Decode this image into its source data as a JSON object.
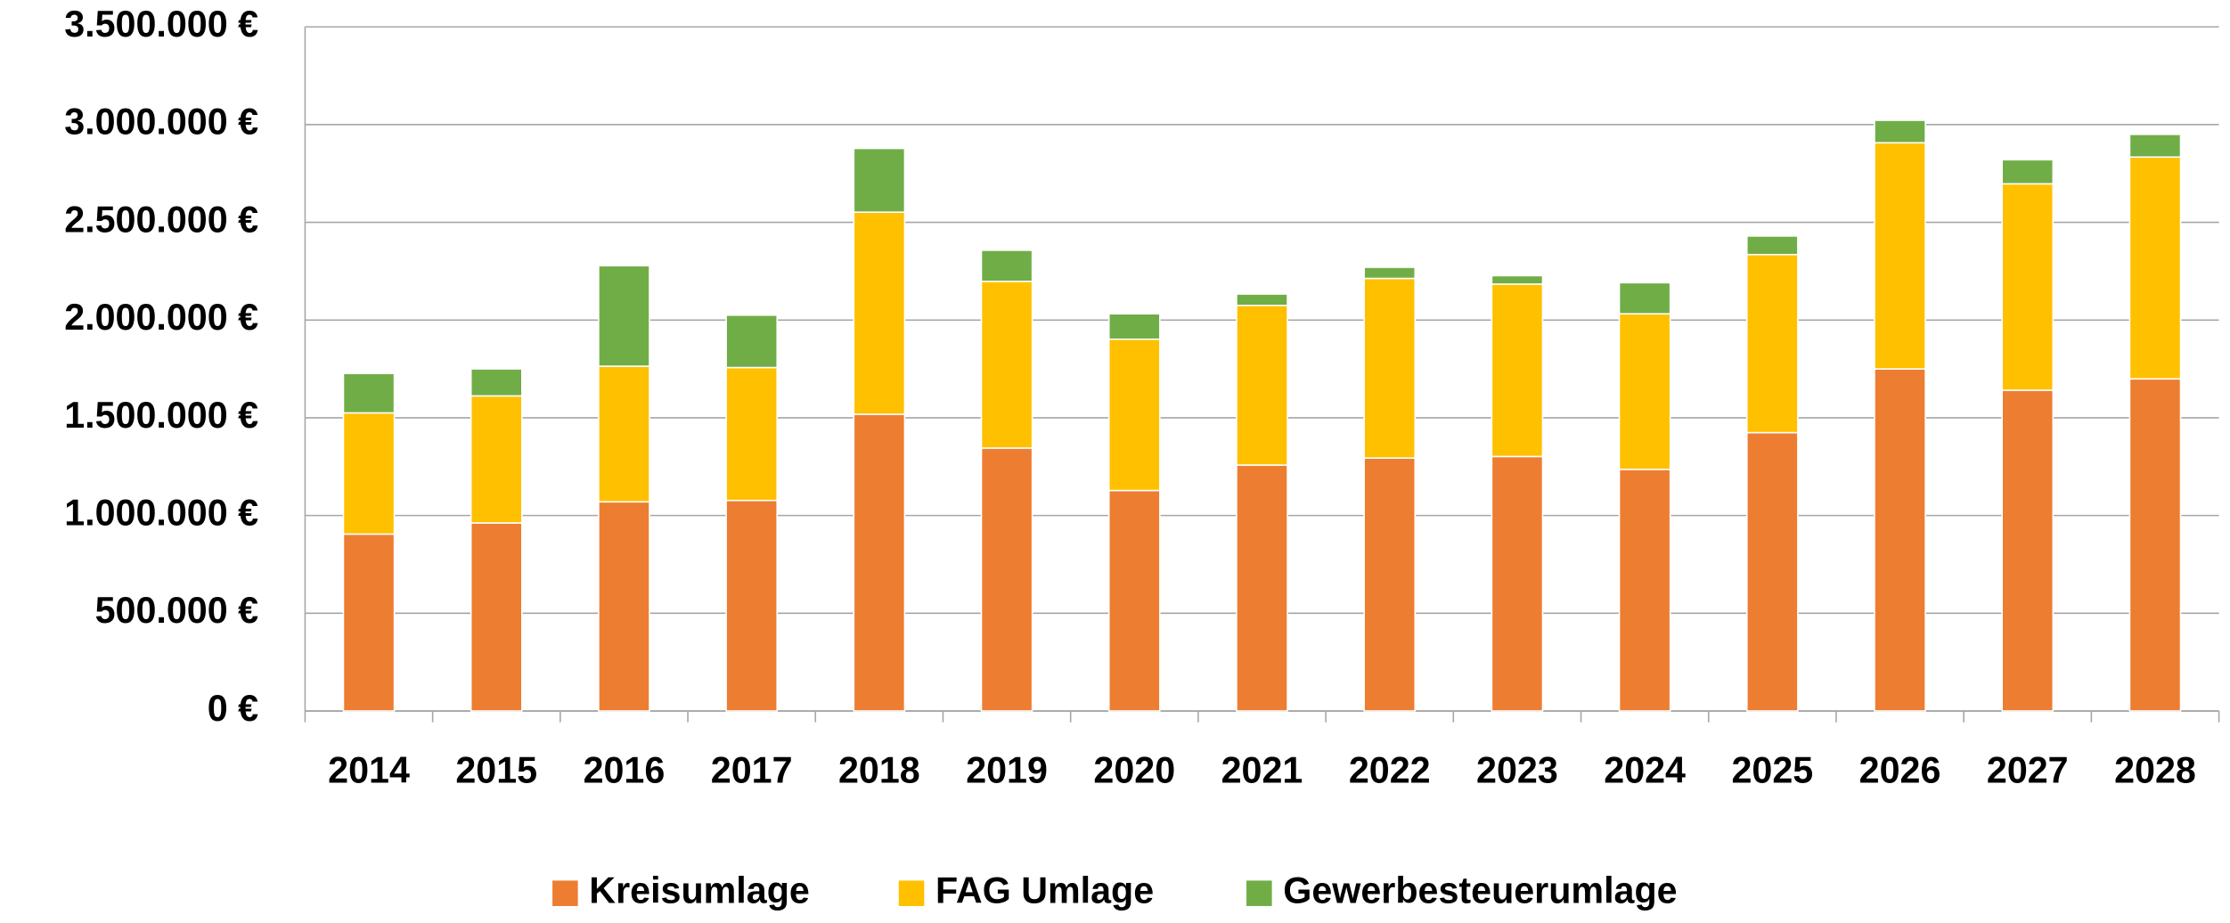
{
  "chart_data": {
    "type": "stacked_bar",
    "categories": [
      "2014",
      "2015",
      "2016",
      "2017",
      "2018",
      "2019",
      "2020",
      "2021",
      "2022",
      "2023",
      "2024",
      "2025",
      "2026",
      "2027",
      "2028"
    ],
    "series": [
      {
        "name": "Kreisumlage",
        "color": "#ed7d31",
        "values": [
          905000,
          962000,
          1070000,
          1077000,
          1518000,
          1345000,
          1128000,
          1258000,
          1294000,
          1302000,
          1236000,
          1424000,
          1750000,
          1641000,
          1699000
        ]
      },
      {
        "name": "FAG Umlage",
        "color": "#ffc000",
        "values": [
          620000,
          650000,
          694000,
          680000,
          1034000,
          853000,
          774000,
          817000,
          919000,
          882000,
          796000,
          911000,
          1157000,
          1056000,
          1135000
        ]
      },
      {
        "name": "Gewerbesteuerumlage",
        "color": "#70ad47",
        "values": [
          202000,
          138000,
          514000,
          268000,
          326000,
          159000,
          130000,
          58000,
          57000,
          43000,
          159000,
          95000,
          115000,
          123000,
          116000
        ]
      }
    ],
    "ylim": [
      0,
      3500000
    ],
    "yticks": [
      {
        "value": 0,
        "label": "0 €"
      },
      {
        "value": 500000,
        "label": "500.000 €"
      },
      {
        "value": 1000000,
        "label": "1.000.000 €"
      },
      {
        "value": 1500000,
        "label": "1.500.000 €"
      },
      {
        "value": 2000000,
        "label": "2.000.000 €"
      },
      {
        "value": 2500000,
        "label": "2.500.000 €"
      },
      {
        "value": 3000000,
        "label": "3.000.000 €"
      },
      {
        "value": 3500000,
        "label": "3.500.000 €"
      }
    ],
    "grid": true,
    "legend": "bottom"
  }
}
